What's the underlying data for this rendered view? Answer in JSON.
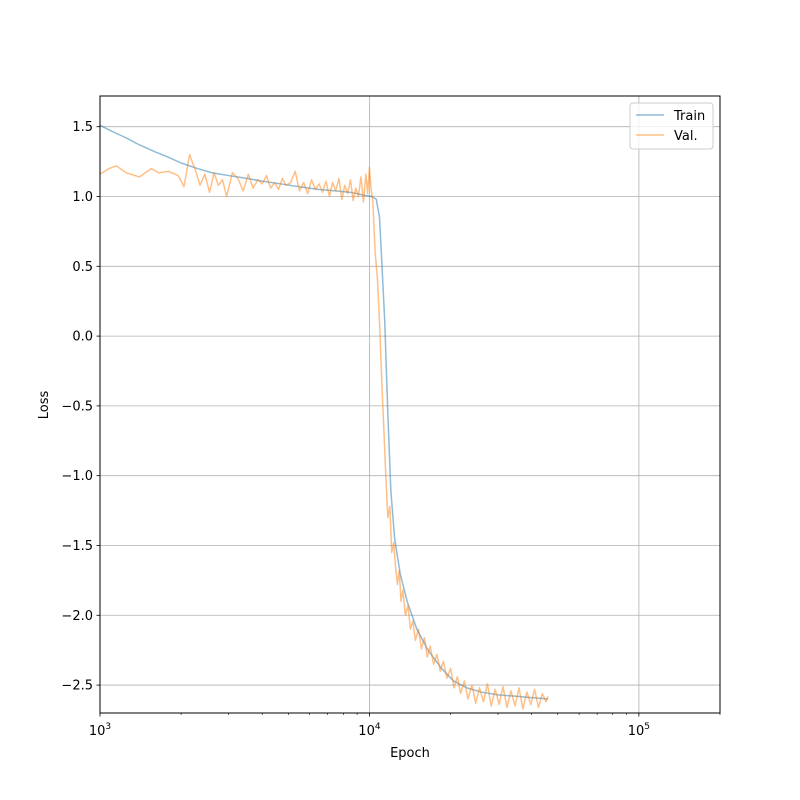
{
  "chart_data": {
    "type": "line",
    "title": "",
    "xlabel": "Epoch",
    "ylabel": "Loss",
    "xscale": "log",
    "xlim": [
      1000,
      200000
    ],
    "ylim": [
      -2.7,
      1.72
    ],
    "grid": true,
    "legend_position": "top-right",
    "x_ticks": [
      {
        "value": 1000,
        "base": "10",
        "exp": "3"
      },
      {
        "value": 10000,
        "base": "10",
        "exp": "4"
      },
      {
        "value": 100000,
        "base": "10",
        "exp": "5"
      }
    ],
    "y_ticks": [
      {
        "value": 1.5,
        "label": "1.5"
      },
      {
        "value": 1.0,
        "label": "1.0"
      },
      {
        "value": 0.5,
        "label": "0.5"
      },
      {
        "value": 0.0,
        "label": "0.0"
      },
      {
        "value": -0.5,
        "label": "−0.5"
      },
      {
        "value": -1.0,
        "label": "−1.0"
      },
      {
        "value": -1.5,
        "label": "−1.5"
      },
      {
        "value": -2.0,
        "label": "−2.0"
      },
      {
        "value": -2.5,
        "label": "−2.5"
      }
    ],
    "series": [
      {
        "name": "Train",
        "color": "#1f77b4",
        "points": [
          [
            1000,
            1.51
          ],
          [
            1100,
            1.47
          ],
          [
            1250,
            1.42
          ],
          [
            1400,
            1.37
          ],
          [
            1600,
            1.32
          ],
          [
            1800,
            1.28
          ],
          [
            2000,
            1.24
          ],
          [
            2300,
            1.2
          ],
          [
            2600,
            1.17
          ],
          [
            3000,
            1.15
          ],
          [
            3500,
            1.13
          ],
          [
            4000,
            1.11
          ],
          [
            4700,
            1.09
          ],
          [
            5500,
            1.07
          ],
          [
            6500,
            1.05
          ],
          [
            7500,
            1.04
          ],
          [
            8500,
            1.03
          ],
          [
            9500,
            1.01
          ],
          [
            10200,
            1.0
          ],
          [
            10600,
            0.98
          ],
          [
            10900,
            0.85
          ],
          [
            11100,
            0.55
          ],
          [
            11400,
            0.1
          ],
          [
            11700,
            -0.55
          ],
          [
            12000,
            -1.1
          ],
          [
            12400,
            -1.45
          ],
          [
            13000,
            -1.7
          ],
          [
            13800,
            -1.9
          ],
          [
            15000,
            -2.1
          ],
          [
            16500,
            -2.25
          ],
          [
            18500,
            -2.38
          ],
          [
            20500,
            -2.47
          ],
          [
            23000,
            -2.52
          ],
          [
            26000,
            -2.55
          ],
          [
            30000,
            -2.57
          ],
          [
            35000,
            -2.58
          ],
          [
            40000,
            -2.59
          ],
          [
            46000,
            -2.6
          ]
        ]
      },
      {
        "name": "Val.",
        "color": "#ff7f0e",
        "points": [
          [
            1000,
            1.16
          ],
          [
            1080,
            1.2
          ],
          [
            1150,
            1.22
          ],
          [
            1250,
            1.17
          ],
          [
            1400,
            1.14
          ],
          [
            1550,
            1.2
          ],
          [
            1650,
            1.17
          ],
          [
            1800,
            1.18
          ],
          [
            1950,
            1.15
          ],
          [
            2050,
            1.07
          ],
          [
            2150,
            1.3
          ],
          [
            2250,
            1.2
          ],
          [
            2350,
            1.08
          ],
          [
            2450,
            1.16
          ],
          [
            2550,
            1.03
          ],
          [
            2650,
            1.17
          ],
          [
            2750,
            1.08
          ],
          [
            2850,
            1.12
          ],
          [
            2950,
            1.0
          ],
          [
            3100,
            1.17
          ],
          [
            3250,
            1.13
          ],
          [
            3400,
            1.04
          ],
          [
            3550,
            1.16
          ],
          [
            3700,
            1.06
          ],
          [
            3850,
            1.12
          ],
          [
            4000,
            1.09
          ],
          [
            4150,
            1.15
          ],
          [
            4300,
            1.06
          ],
          [
            4450,
            1.1
          ],
          [
            4600,
            1.05
          ],
          [
            4750,
            1.13
          ],
          [
            4900,
            1.08
          ],
          [
            5100,
            1.1
          ],
          [
            5300,
            1.18
          ],
          [
            5500,
            1.04
          ],
          [
            5700,
            1.1
          ],
          [
            5900,
            1.02
          ],
          [
            6100,
            1.12
          ],
          [
            6300,
            1.05
          ],
          [
            6500,
            1.09
          ],
          [
            6700,
            1.03
          ],
          [
            6900,
            1.11
          ],
          [
            7100,
            1.0
          ],
          [
            7300,
            1.1
          ],
          [
            7500,
            1.04
          ],
          [
            7700,
            1.13
          ],
          [
            7900,
            0.98
          ],
          [
            8100,
            1.08
          ],
          [
            8300,
            1.02
          ],
          [
            8500,
            1.12
          ],
          [
            8700,
            0.97
          ],
          [
            8900,
            1.06
          ],
          [
            9100,
            1.0
          ],
          [
            9300,
            1.14
          ],
          [
            9500,
            0.96
          ],
          [
            9700,
            1.16
          ],
          [
            9850,
            1.02
          ],
          [
            10000,
            1.21
          ],
          [
            10150,
            1.05
          ],
          [
            10300,
            0.96
          ],
          [
            10500,
            0.6
          ],
          [
            10700,
            0.42
          ],
          [
            10900,
            0.1
          ],
          [
            11100,
            -0.3
          ],
          [
            11300,
            -0.65
          ],
          [
            11500,
            -1.0
          ],
          [
            11700,
            -1.3
          ],
          [
            11900,
            -1.22
          ],
          [
            12100,
            -1.55
          ],
          [
            12300,
            -1.48
          ],
          [
            12500,
            -1.65
          ],
          [
            12700,
            -1.78
          ],
          [
            12900,
            -1.68
          ],
          [
            13100,
            -1.9
          ],
          [
            13300,
            -1.82
          ],
          [
            13600,
            -2.0
          ],
          [
            13900,
            -1.93
          ],
          [
            14200,
            -2.1
          ],
          [
            14500,
            -2.04
          ],
          [
            14800,
            -2.18
          ],
          [
            15200,
            -2.1
          ],
          [
            15600,
            -2.24
          ],
          [
            16000,
            -2.16
          ],
          [
            16400,
            -2.3
          ],
          [
            16800,
            -2.22
          ],
          [
            17300,
            -2.35
          ],
          [
            17800,
            -2.28
          ],
          [
            18300,
            -2.4
          ],
          [
            18800,
            -2.33
          ],
          [
            19400,
            -2.45
          ],
          [
            20000,
            -2.38
          ],
          [
            20600,
            -2.52
          ],
          [
            21200,
            -2.44
          ],
          [
            21800,
            -2.56
          ],
          [
            22500,
            -2.47
          ],
          [
            23200,
            -2.6
          ],
          [
            24000,
            -2.5
          ],
          [
            24800,
            -2.63
          ],
          [
            25600,
            -2.52
          ],
          [
            26500,
            -2.62
          ],
          [
            27400,
            -2.49
          ],
          [
            28300,
            -2.65
          ],
          [
            29300,
            -2.53
          ],
          [
            30300,
            -2.64
          ],
          [
            31300,
            -2.51
          ],
          [
            32400,
            -2.66
          ],
          [
            33500,
            -2.54
          ],
          [
            34700,
            -2.65
          ],
          [
            35900,
            -2.52
          ],
          [
            37100,
            -2.67
          ],
          [
            38400,
            -2.55
          ],
          [
            39700,
            -2.64
          ],
          [
            41000,
            -2.53
          ],
          [
            42400,
            -2.66
          ],
          [
            43800,
            -2.56
          ],
          [
            45200,
            -2.62
          ],
          [
            46000,
            -2.58
          ]
        ]
      }
    ]
  }
}
